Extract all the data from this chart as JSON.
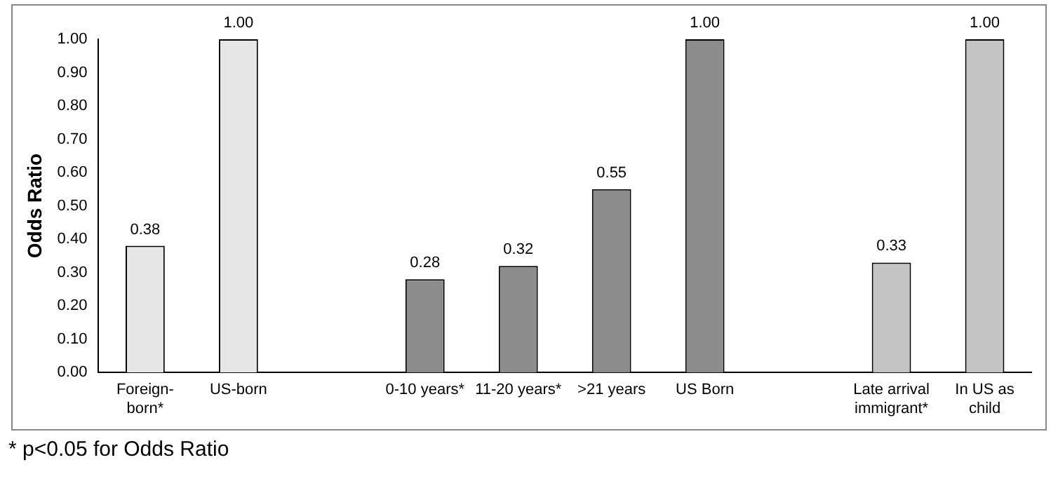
{
  "chart_data": {
    "type": "bar",
    "ylabel": "Odds Ratio",
    "categories": [
      "Foreign-born*",
      "US-born",
      null,
      "0-10 years*",
      "11-20 years*",
      ">21 years",
      "US Born",
      null,
      "Late arrival immigrant*",
      "In US as child"
    ],
    "values": [
      0.38,
      1.0,
      null,
      0.28,
      0.32,
      0.55,
      1.0,
      null,
      0.33,
      1.0
    ],
    "colors": [
      "#e6e6e6",
      "#e6e6e6",
      null,
      "#8c8c8c",
      "#8c8c8c",
      "#8c8c8c",
      "#8c8c8c",
      null,
      "#c4c4c4",
      "#c4c4c4"
    ],
    "value_labels": [
      "0.38",
      "1.00",
      null,
      "0.28",
      "0.32",
      "0.55",
      "1.00",
      null,
      "0.33",
      "1.00"
    ],
    "ylim": [
      0,
      1
    ],
    "yticks": [
      {
        "value": 0,
        "label": "0.00"
      },
      {
        "value": 0.1,
        "label": "0.10"
      },
      {
        "value": 0.2,
        "label": "0.20"
      },
      {
        "value": 0.3,
        "label": "0.30"
      },
      {
        "value": 0.4,
        "label": "0.40"
      },
      {
        "value": 0.5,
        "label": "0.50"
      },
      {
        "value": 0.6,
        "label": "0.60"
      },
      {
        "value": 0.7,
        "label": "0.70"
      },
      {
        "value": 0.8,
        "label": "0.80"
      },
      {
        "value": 0.9,
        "label": "0.90"
      },
      {
        "value": 1,
        "label": "1.00"
      }
    ],
    "grid": false,
    "legend": false,
    "annotations": [
      "* p<0.05 for Odds Ratio"
    ]
  }
}
